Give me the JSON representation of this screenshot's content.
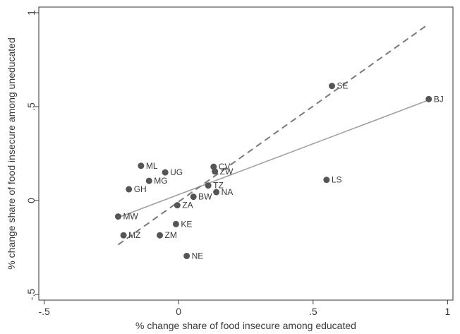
{
  "chart_data": {
    "type": "scatter",
    "title": "",
    "xlabel": "% change share of food insecure among educated",
    "ylabel": "% change share of food insecure among uneducated",
    "xlim": [
      -0.52,
      1.02
    ],
    "ylim": [
      -0.53,
      1.03
    ],
    "xticks": [
      {
        "value": -0.5,
        "label": "-.5"
      },
      {
        "value": 0,
        "label": "0"
      },
      {
        "value": 0.5,
        "label": ".5"
      },
      {
        "value": 1,
        "label": "1"
      }
    ],
    "yticks": [
      {
        "value": -0.5,
        "label": "-.5"
      },
      {
        "value": 0,
        "label": "0"
      },
      {
        "value": 0.5,
        "label": ".5"
      },
      {
        "value": 1,
        "label": "1"
      }
    ],
    "grid": false,
    "points": [
      {
        "label": "BJ",
        "x": 0.93,
        "y": 0.54
      },
      {
        "label": "SE",
        "x": 0.57,
        "y": 0.61
      },
      {
        "label": "LS",
        "x": 0.55,
        "y": 0.11
      },
      {
        "label": "CV",
        "x": 0.13,
        "y": 0.18
      },
      {
        "label": "ZW",
        "x": 0.135,
        "y": 0.155
      },
      {
        "label": "TZ",
        "x": 0.11,
        "y": 0.08
      },
      {
        "label": "NA",
        "x": 0.14,
        "y": 0.045
      },
      {
        "label": "BW",
        "x": 0.055,
        "y": 0.02
      },
      {
        "label": "ZA",
        "x": -0.005,
        "y": -0.025
      },
      {
        "label": "KE",
        "x": -0.01,
        "y": -0.125
      },
      {
        "label": "NE",
        "x": 0.03,
        "y": -0.295
      },
      {
        "label": "ZM",
        "x": -0.07,
        "y": -0.185
      },
      {
        "label": "MZ",
        "x": -0.205,
        "y": -0.185
      },
      {
        "label": "MW",
        "x": -0.225,
        "y": -0.085
      },
      {
        "label": "GH",
        "x": -0.185,
        "y": 0.06
      },
      {
        "label": "MG",
        "x": -0.11,
        "y": 0.105
      },
      {
        "label": "ML",
        "x": -0.14,
        "y": 0.185
      },
      {
        "label": "UG",
        "x": -0.05,
        "y": 0.15
      }
    ],
    "lines": [
      {
        "style": "solid",
        "x": [
          -0.225,
          0.93
        ],
        "y": [
          -0.09,
          0.535
        ]
      },
      {
        "style": "dashed",
        "x": [
          -0.225,
          0.925
        ],
        "y": [
          -0.235,
          0.935
        ]
      }
    ],
    "colors": {
      "marker": "#555555",
      "fit_line": "#a0a0a0",
      "dashed_line": "#7a7a7a",
      "frame": "#333333",
      "text": "#3a3a3a"
    }
  }
}
